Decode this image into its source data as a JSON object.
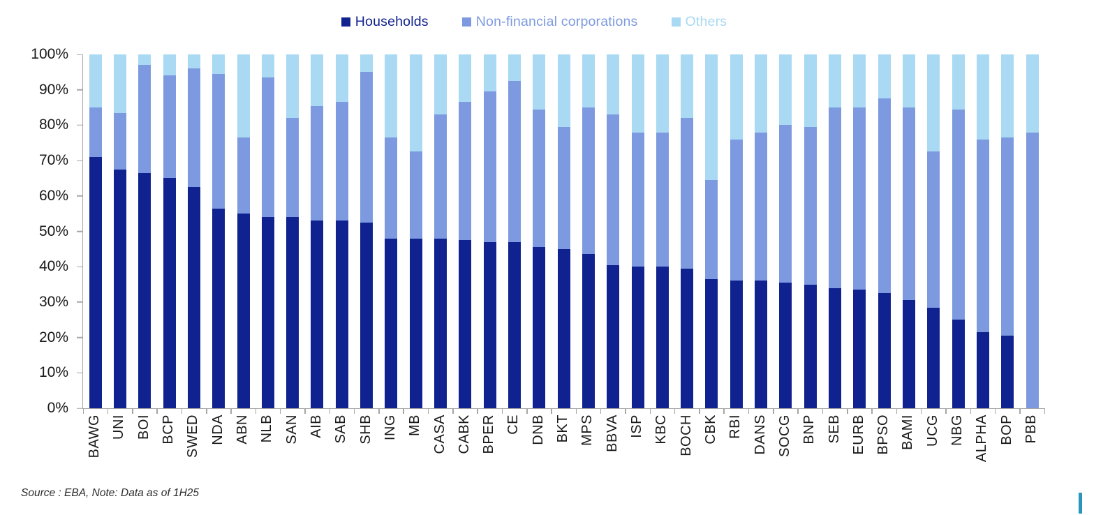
{
  "legend": [
    {
      "label": "Households",
      "color": "#10228f"
    },
    {
      "label": "Non-financial corporations",
      "color": "#7d9ae0"
    },
    {
      "label": "Others",
      "color": "#a9d9f3"
    }
  ],
  "chart_data": {
    "type": "bar",
    "stacked": true,
    "title": "",
    "xlabel": "",
    "ylabel": "",
    "ylim": [
      0,
      100
    ],
    "y_tick_step": 10,
    "y_tick_suffix": "%",
    "grid": false,
    "legend_position": "top-center",
    "categories": [
      "BAWG",
      "UNI",
      "BOI",
      "BCP",
      "SWED",
      "NDA",
      "ABN",
      "NLB",
      "SAN",
      "AIB",
      "SAB",
      "SHB",
      "ING",
      "MB",
      "CASA",
      "CABK",
      "BPER",
      "CE",
      "DNB",
      "BKT",
      "MPS",
      "BBVA",
      "ISP",
      "KBC",
      "BOCH",
      "CBK",
      "RBI",
      "DANS",
      "SOCG",
      "BNP",
      "SEB",
      "EURB",
      "BPSO",
      "BAMI",
      "UCG",
      "NBG",
      "ALPHA",
      "BOP",
      "PBB"
    ],
    "series": [
      {
        "name": "Households",
        "color": "#10228f",
        "values": [
          71,
          67.5,
          66.5,
          65,
          62.5,
          56.5,
          55,
          54,
          54,
          53,
          53,
          52.5,
          48,
          48,
          48,
          47.5,
          47,
          47,
          45.5,
          45,
          43.5,
          40.5,
          40,
          40,
          39.5,
          36.5,
          36,
          36,
          35.5,
          35,
          34,
          33.5,
          32.5,
          30.5,
          28.5,
          25,
          21.5,
          20.5,
          0
        ]
      },
      {
        "name": "Non-financial corporations",
        "color": "#7d9ae0",
        "values": [
          14,
          16,
          30.5,
          29,
          33.5,
          38,
          21.5,
          39.5,
          28,
          32.5,
          33.5,
          42.5,
          28.5,
          24.5,
          35,
          39,
          42.5,
          45.5,
          39,
          34.5,
          41.5,
          42.5,
          38,
          38,
          42.5,
          28,
          40,
          42,
          44.5,
          44.5,
          51,
          51.5,
          55,
          54.5,
          44,
          59.5,
          54.5,
          56,
          78
        ]
      },
      {
        "name": "Others",
        "color": "#a9d9f3",
        "values": [
          15,
          16.5,
          3,
          6,
          4,
          5.5,
          23.5,
          6.5,
          18,
          14.5,
          13.5,
          5,
          23.5,
          27.5,
          17,
          13.5,
          10.5,
          7.5,
          15.5,
          20.5,
          15,
          17,
          22,
          22,
          18,
          35.5,
          24,
          22,
          20,
          20.5,
          15,
          15,
          12.5,
          15,
          27.5,
          15.5,
          24,
          23.5,
          22
        ]
      }
    ]
  },
  "footer": {
    "source_note": "Source : EBA, Note: Data as of 1H25"
  },
  "accent_mark_color": "#2a96be"
}
